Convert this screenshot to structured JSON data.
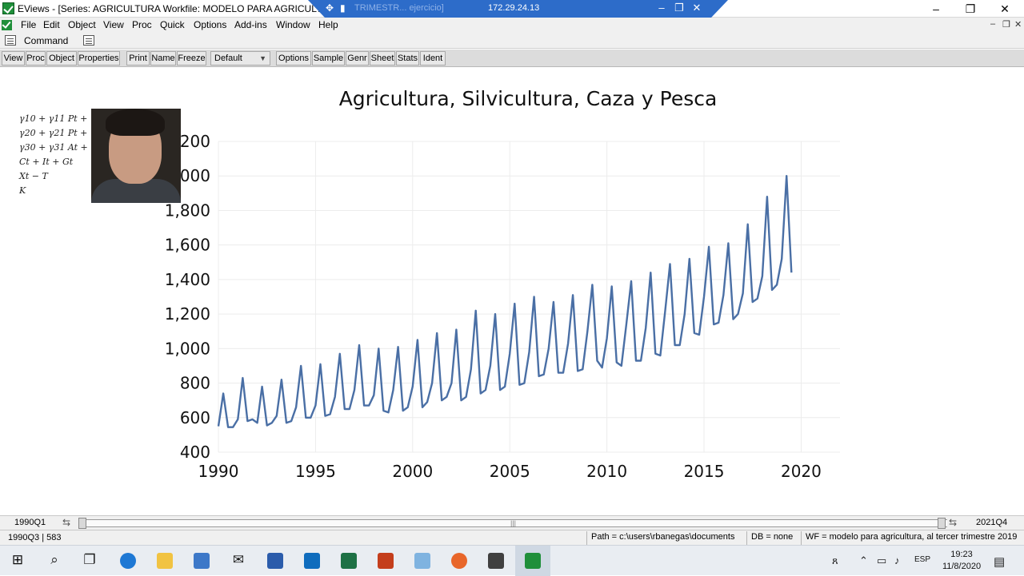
{
  "window": {
    "title": "EViews - [Series: AGRICULTURA   Workfile: MODELO PARA AGRICULTURA",
    "remote_ip": "172.29.24.13",
    "remote_ghost_text": "TRIMESTR...   ejercicio]",
    "minimize": "–",
    "restore": "❐",
    "close": "✕"
  },
  "menu": {
    "items": [
      "File",
      "Edit",
      "Object",
      "View",
      "Proc",
      "Quick",
      "Options",
      "Add-ins",
      "Window",
      "Help"
    ],
    "mdi_controls": [
      "–",
      "❐",
      "✕"
    ]
  },
  "command": {
    "label": "Command"
  },
  "toolbar": {
    "group1": [
      "View",
      "Proc",
      "Object",
      "Properties"
    ],
    "group2": [
      "Print",
      "Name",
      "Freeze"
    ],
    "select_value": "Default",
    "group3": [
      "Options",
      "Sample",
      "Genr",
      "Sheet",
      "Stats",
      "Ident"
    ]
  },
  "webcam": {
    "formulas": [
      "γ10 + γ11 Pt + γ",
      "γ20 + γ21 Pt + γ",
      "γ30 + γ31 At +",
      "Ct + It + Gt",
      "Xt − T",
      "K"
    ]
  },
  "chart_data": {
    "type": "line",
    "title": "Agricultura, Silvicultura, Caza y Pesca",
    "xlabel": "",
    "ylabel": "",
    "frequency": "quarterly",
    "x_start": "1990Q1",
    "xlim": [
      1990,
      2022
    ],
    "ylim": [
      400,
      2200
    ],
    "x_ticks": [
      1990,
      1995,
      2000,
      2005,
      2010,
      2015,
      2020
    ],
    "y_ticks": [
      400,
      600,
      800,
      1000,
      1200,
      1400,
      1600,
      1800,
      2000,
      2200
    ],
    "y_tick_labels": [
      "400",
      "600",
      "800",
      "1,000",
      "1,200",
      "1,400",
      "1,600",
      "1,800",
      "2,000",
      "2,200"
    ],
    "grid": true,
    "legend": "none",
    "line_color": "#4a6fa5",
    "series": [
      {
        "values": [
          550,
          740,
          545,
          545,
          590,
          830,
          580,
          590,
          570,
          780,
          555,
          570,
          610,
          820,
          570,
          580,
          660,
          900,
          600,
          600,
          670,
          910,
          610,
          620,
          720,
          970,
          650,
          650,
          760,
          1020,
          670,
          670,
          730,
          1000,
          640,
          630,
          760,
          1010,
          640,
          660,
          780,
          1050,
          660,
          690,
          800,
          1090,
          700,
          720,
          800,
          1110,
          700,
          720,
          880,
          1220,
          740,
          760,
          900,
          1200,
          760,
          780,
          970,
          1260,
          790,
          800,
          980,
          1300,
          840,
          850,
          1000,
          1270,
          860,
          860,
          1030,
          1310,
          870,
          880,
          1100,
          1370,
          930,
          890,
          1060,
          1360,
          920,
          900,
          1140,
          1390,
          930,
          930,
          1120,
          1440,
          970,
          960,
          1220,
          1490,
          1020,
          1020,
          1200,
          1520,
          1090,
          1080,
          1300,
          1590,
          1140,
          1150,
          1310,
          1610,
          1170,
          1200,
          1320,
          1720,
          1270,
          1290,
          1420,
          1880,
          1340,
          1370,
          1520,
          2000,
          1440
        ]
      }
    ]
  },
  "range": {
    "start": "1990Q1",
    "end": "2021Q4"
  },
  "status": {
    "selection": "1990Q3 | 583",
    "path": "Path = c:\\users\\rbanegas\\documents",
    "db": "DB = none",
    "wf": "WF = modelo para agricultura, al tercer trimestre 2019"
  },
  "taskbar": {
    "lang": "ESP",
    "time": "19:23",
    "date": "11/8/2020"
  }
}
